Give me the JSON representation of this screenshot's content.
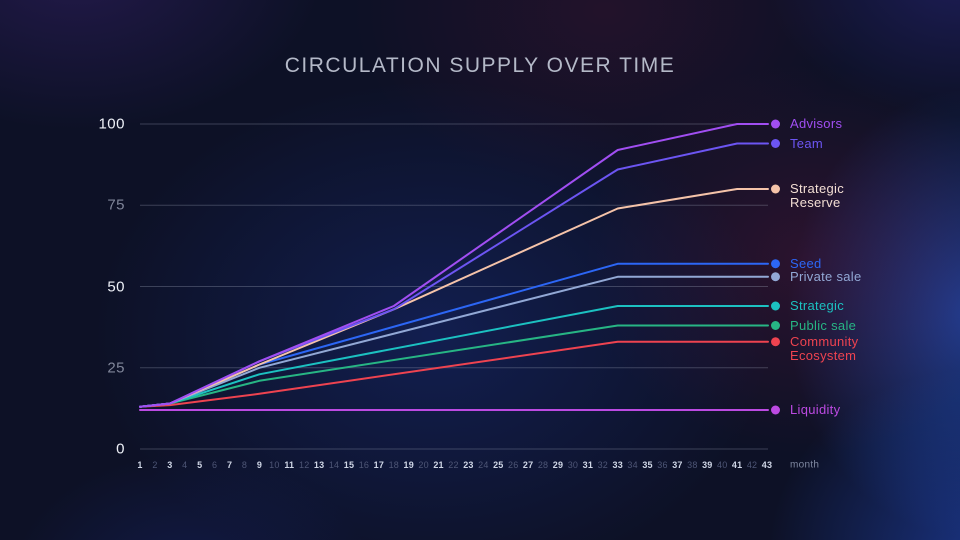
{
  "title": "CIRCULATION SUPPLY OVER TIME",
  "axis": {
    "x_unit_label": "month",
    "y_tick_bright_color": "#eef1f8",
    "y_tick_dim_color": "#80869a",
    "gridline_color": "rgba(170,176,196,0.30)"
  },
  "chart_data": {
    "type": "line",
    "title": "CIRCULATION SUPPLY OVER TIME",
    "xlabel": "month",
    "ylabel": "",
    "x_ticks": [
      1,
      2,
      3,
      4,
      5,
      6,
      7,
      8,
      9,
      10,
      11,
      12,
      13,
      14,
      15,
      16,
      17,
      18,
      19,
      20,
      21,
      22,
      23,
      24,
      25,
      26,
      27,
      28,
      29,
      30,
      31,
      32,
      33,
      34,
      35,
      36,
      37,
      38,
      39,
      40,
      41,
      42,
      43
    ],
    "y_ticks": [
      0,
      25,
      50,
      75,
      100
    ],
    "xlim": [
      1,
      43
    ],
    "ylim": [
      0,
      108
    ],
    "grid": "horizontal",
    "legend_position": "right-of-line-ends",
    "series": [
      {
        "id": "advisors",
        "name": "Advisors",
        "label_lines": [
          "Advisors"
        ],
        "color": "#a14ef2",
        "points": [
          [
            1,
            13
          ],
          [
            3,
            14
          ],
          [
            9,
            27
          ],
          [
            18,
            44
          ],
          [
            33,
            92
          ],
          [
            41,
            100
          ],
          [
            43,
            100
          ]
        ]
      },
      {
        "id": "team",
        "name": "Team",
        "label_lines": [
          "Team"
        ],
        "color": "#6c55f2",
        "points": [
          [
            1,
            13
          ],
          [
            3,
            14
          ],
          [
            9,
            27
          ],
          [
            18,
            43
          ],
          [
            33,
            86
          ],
          [
            41,
            94
          ],
          [
            43,
            94
          ]
        ]
      },
      {
        "id": "strategic-reserve",
        "name": "Strategic Reserve",
        "label_lines": [
          "Strategic",
          "Reserve"
        ],
        "color": "#f5c3a9",
        "label_color": "#f3ded4",
        "points": [
          [
            1,
            13
          ],
          [
            3,
            14
          ],
          [
            9,
            26
          ],
          [
            18,
            43
          ],
          [
            33,
            74
          ],
          [
            41,
            80
          ],
          [
            43,
            80
          ]
        ]
      },
      {
        "id": "seed",
        "name": "Seed",
        "label_lines": [
          "Seed"
        ],
        "color": "#2c66f5",
        "points": [
          [
            1,
            13
          ],
          [
            3,
            14
          ],
          [
            9,
            26
          ],
          [
            33,
            57
          ],
          [
            43,
            57
          ]
        ]
      },
      {
        "id": "private-sale",
        "name": "Private sale",
        "label_lines": [
          "Private sale"
        ],
        "color": "#92a8d5",
        "points": [
          [
            1,
            13
          ],
          [
            3,
            14
          ],
          [
            9,
            25
          ],
          [
            33,
            53
          ],
          [
            43,
            53
          ]
        ]
      },
      {
        "id": "strategic",
        "name": "Strategic",
        "label_lines": [
          "Strategic"
        ],
        "color": "#1cc1c1",
        "points": [
          [
            1,
            13
          ],
          [
            3,
            14
          ],
          [
            9,
            23
          ],
          [
            33,
            44
          ],
          [
            43,
            44
          ]
        ]
      },
      {
        "id": "public-sale",
        "name": "Public sale",
        "label_lines": [
          "Public sale"
        ],
        "color": "#27b584",
        "points": [
          [
            1,
            13
          ],
          [
            3,
            14
          ],
          [
            9,
            21
          ],
          [
            33,
            38
          ],
          [
            43,
            38
          ]
        ]
      },
      {
        "id": "community-ecosystem",
        "name": "Community Ecosystem",
        "label_lines": [
          "Community",
          "Ecosystem"
        ],
        "color": "#ee4350",
        "points": [
          [
            1,
            13
          ],
          [
            3,
            13.5
          ],
          [
            9,
            17
          ],
          [
            33,
            33
          ],
          [
            43,
            33
          ]
        ]
      },
      {
        "id": "liquidity",
        "name": "Liquidity",
        "label_lines": [
          "Liquidity"
        ],
        "color": "#bc4ae2",
        "points": [
          [
            1,
            12
          ],
          [
            43,
            12
          ]
        ]
      }
    ]
  }
}
